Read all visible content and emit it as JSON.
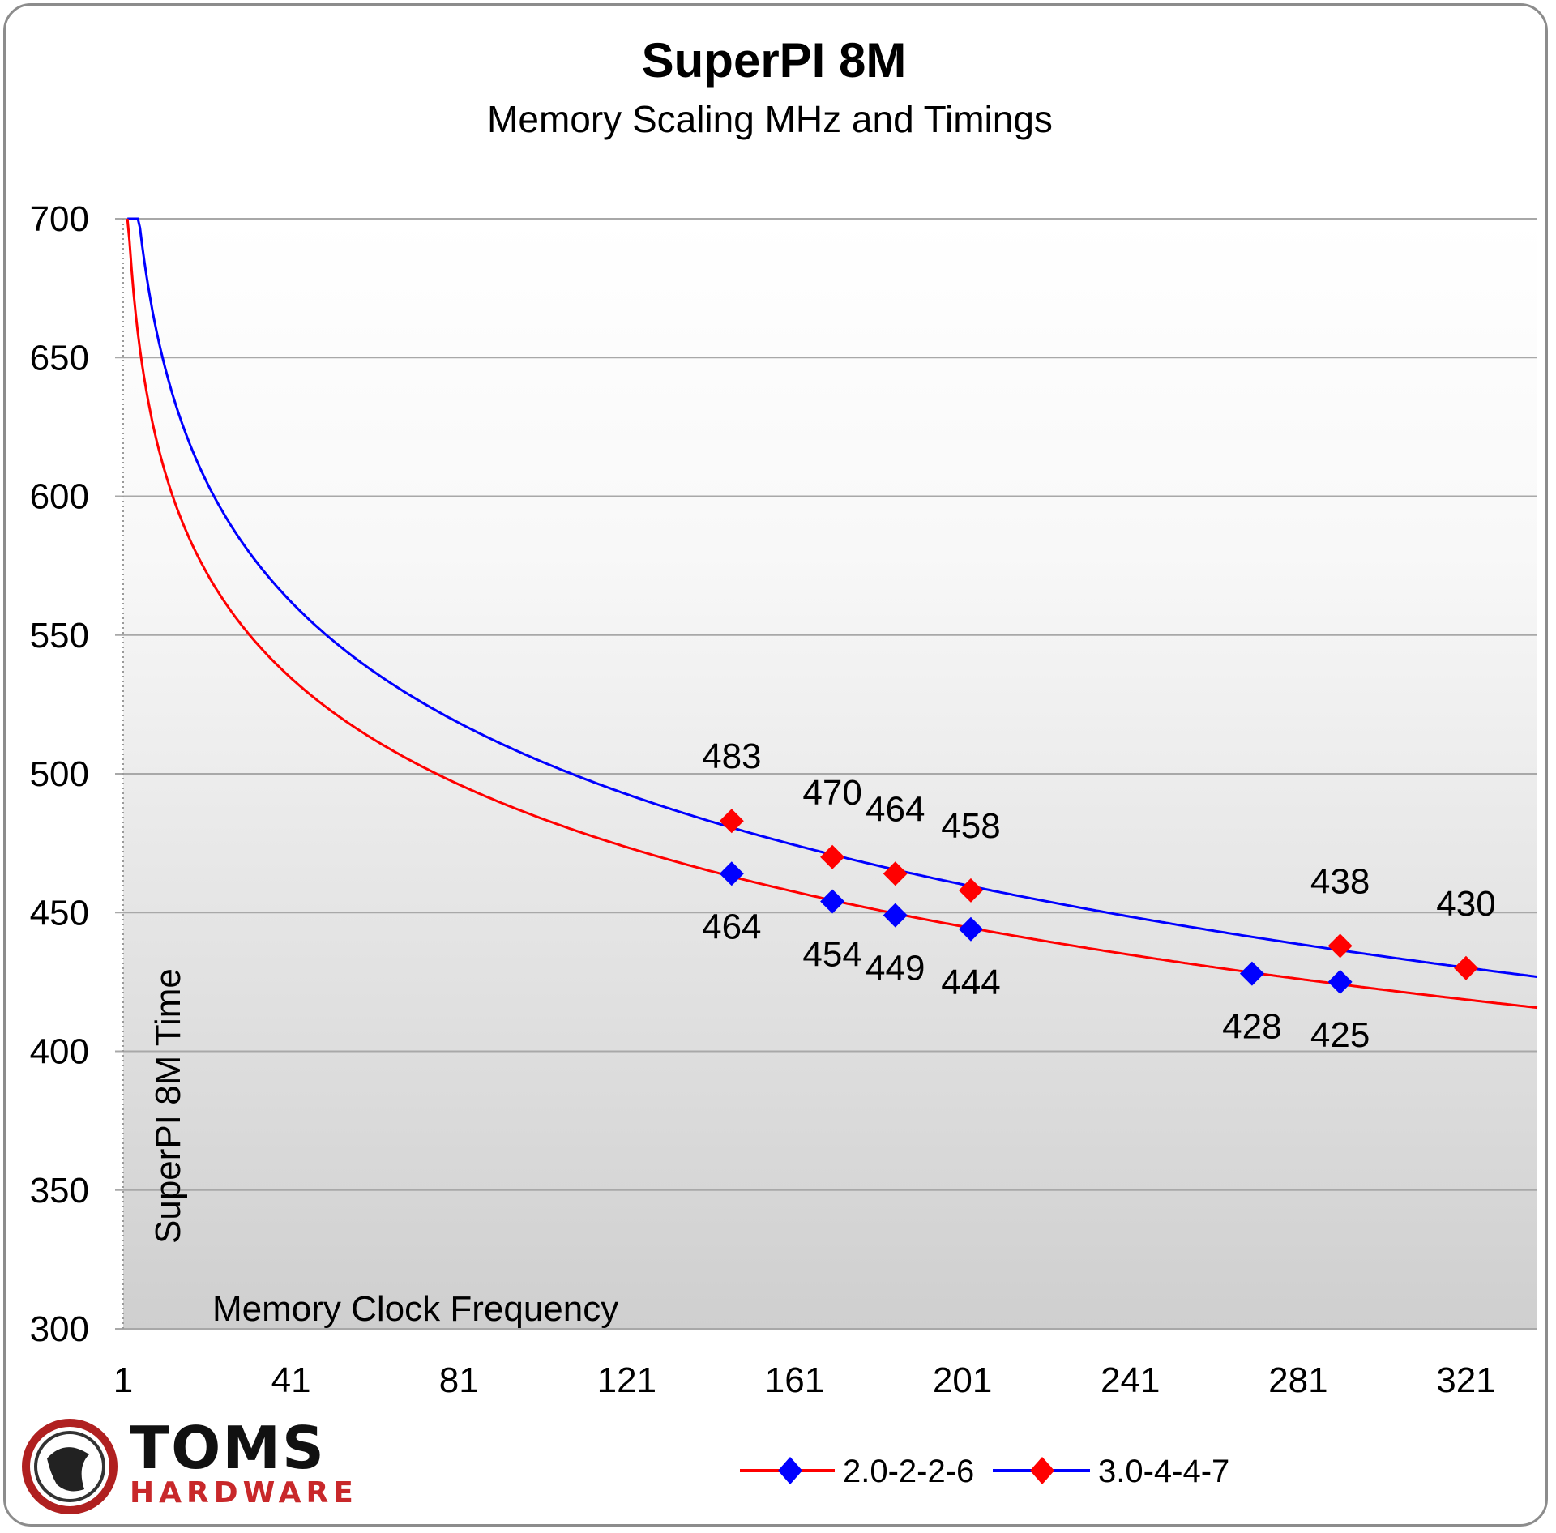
{
  "chart_data": {
    "type": "line",
    "title": "SuperPI 8M",
    "subtitle": "Memory Scaling MHz and Timings",
    "ylabel": "SuperPI 8M Time",
    "xlabel": "Memory Clock Frequency",
    "ylim": [
      300,
      700
    ],
    "y_ticks": [
      "700",
      "650",
      "600",
      "550",
      "500",
      "450",
      "400",
      "350",
      "300"
    ],
    "xlim": [
      1,
      338
    ],
    "x_ticks": [
      "1",
      "41",
      "81",
      "121",
      "161",
      "201",
      "241",
      "281",
      "321"
    ],
    "grid": true,
    "legend_position": "bottom",
    "series": [
      {
        "name": "2.0-2-2-6",
        "marker_color": "#0000ff",
        "line_color": "#ff0000",
        "points": [
          {
            "x": 146,
            "y": 464,
            "label": "464"
          },
          {
            "x": 170,
            "y": 454,
            "label": "454"
          },
          {
            "x": 185,
            "y": 449,
            "label": "449"
          },
          {
            "x": 203,
            "y": 444,
            "label": "444"
          },
          {
            "x": 270,
            "y": 428,
            "label": "428"
          },
          {
            "x": 291,
            "y": 425,
            "label": "425"
          }
        ]
      },
      {
        "name": "3.0-4-4-7",
        "marker_color": "#ff0000",
        "line_color": "#0000ff",
        "points": [
          {
            "x": 146,
            "y": 483,
            "label": "483"
          },
          {
            "x": 170,
            "y": 470,
            "label": "470"
          },
          {
            "x": 185,
            "y": 464,
            "label": "464"
          },
          {
            "x": 203,
            "y": 458,
            "label": "458"
          },
          {
            "x": 291,
            "y": 438,
            "label": "438"
          },
          {
            "x": 321,
            "y": 430,
            "label": "430"
          }
        ]
      }
    ],
    "trendline_curve": "logarithmic"
  },
  "logo": {
    "line1": "TOMS",
    "line2": "HARDWARE"
  }
}
